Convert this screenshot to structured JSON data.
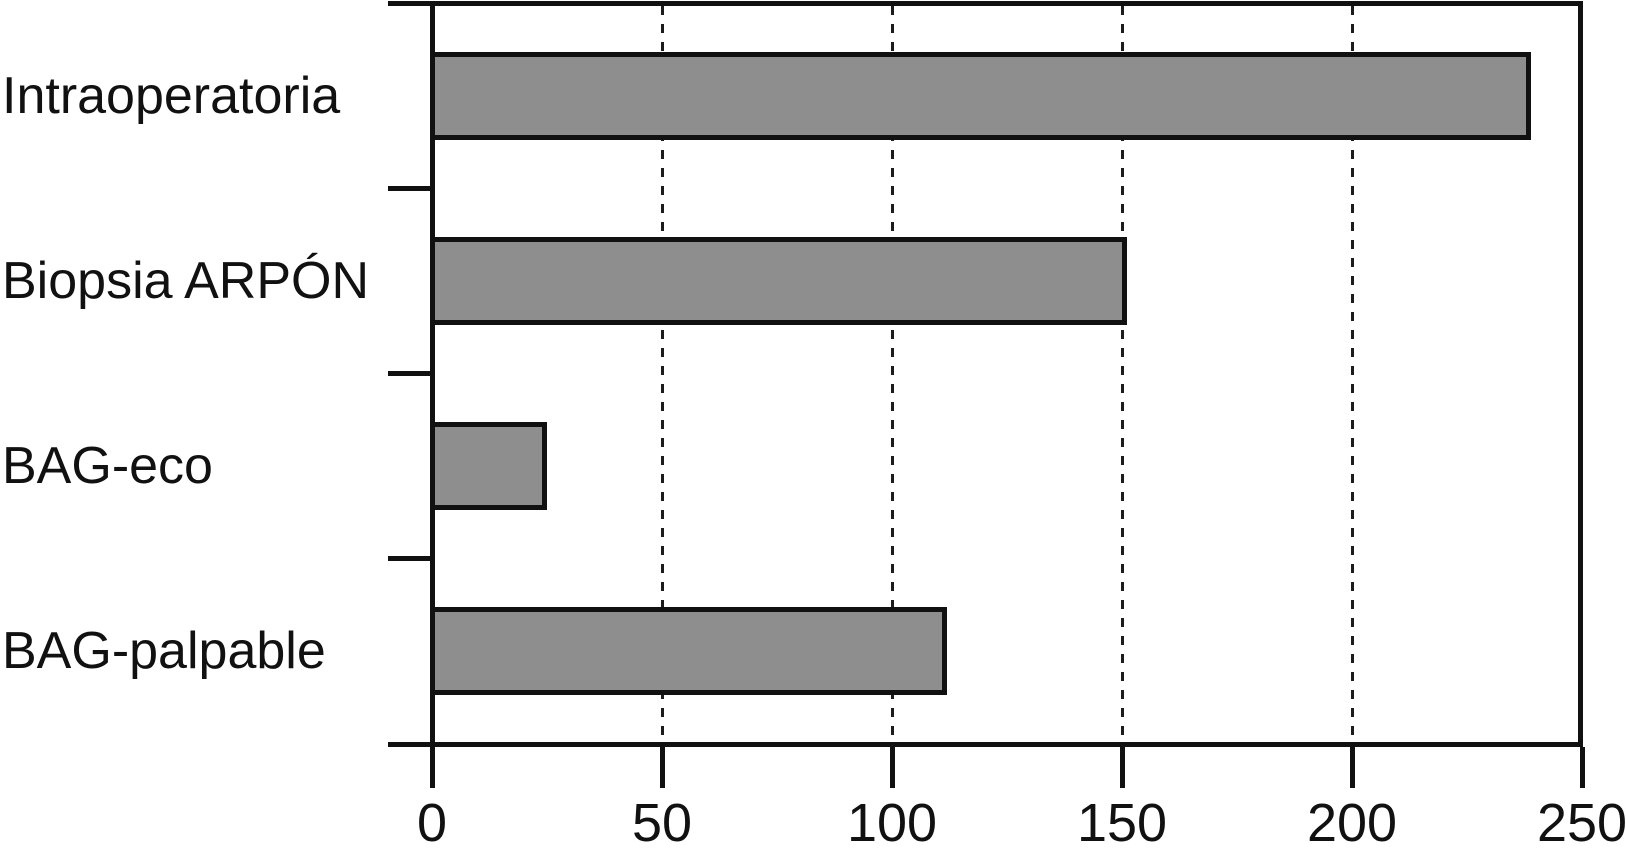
{
  "chart_data": {
    "type": "bar",
    "orientation": "horizontal",
    "title": "",
    "xlabel": "",
    "ylabel": "",
    "categories": [
      "Intraoperatoria",
      "Biopsia ARPÓN",
      "BAG-eco",
      "BAG-palpable"
    ],
    "values": [
      239,
      151,
      25,
      112
    ],
    "xlim": [
      0,
      250
    ],
    "x_ticks": [
      0,
      50,
      100,
      150,
      200,
      250
    ],
    "x_tick_labels": [
      "0",
      "50",
      "100",
      "150",
      "200",
      "250"
    ],
    "gridline_values": [
      50,
      100,
      150,
      200
    ],
    "grid_style": "dashed",
    "legend": "none",
    "colors": {
      "bar_fill": "#8e8e8e",
      "bar_border": "#111111",
      "axis": "#111111",
      "text": "#111111",
      "background": "#ffffff"
    }
  }
}
